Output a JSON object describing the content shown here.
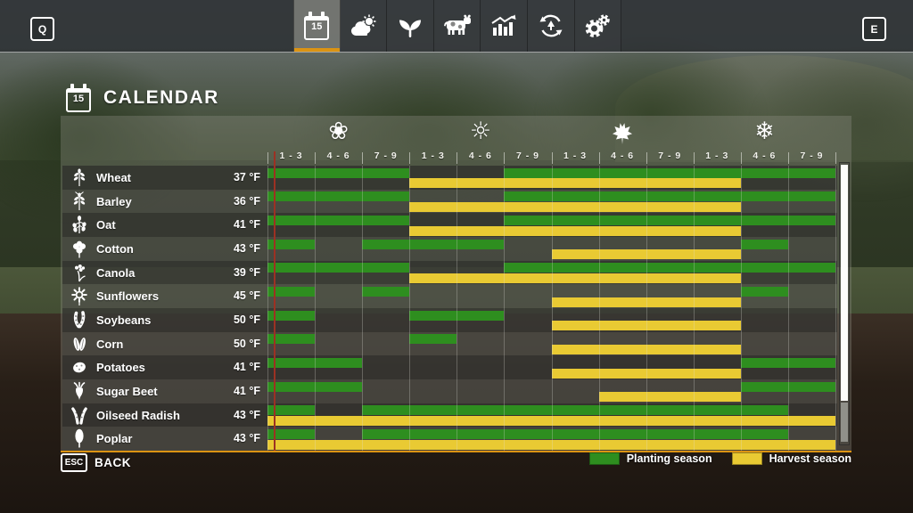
{
  "hud": {
    "left_key": "Q",
    "right_key": "E"
  },
  "topbar": {
    "tabs": [
      {
        "id": "calendar",
        "icon": "calendar-icon",
        "day": "15",
        "active": true
      },
      {
        "id": "weather",
        "icon": "weather-icon",
        "active": false
      },
      {
        "id": "crops",
        "icon": "seedling-icon",
        "active": false
      },
      {
        "id": "animals",
        "icon": "cow-icon",
        "active": false
      },
      {
        "id": "statistics",
        "icon": "stats-icon",
        "active": false
      },
      {
        "id": "rotation",
        "icon": "cycle-icon",
        "active": false
      },
      {
        "id": "settings",
        "icon": "gear-icon",
        "active": false
      }
    ]
  },
  "page": {
    "title": "CALENDAR",
    "icon_day": "15",
    "back_key": "ESC",
    "back_label": "BACK"
  },
  "calendar": {
    "seasons": [
      {
        "name": "spring",
        "icon": "flower-icon",
        "periods": [
          "1 - 3",
          "4 - 6",
          "7 - 9"
        ]
      },
      {
        "name": "summer",
        "icon": "sun-icon",
        "periods": [
          "1 - 3",
          "4 - 6",
          "7 - 9"
        ]
      },
      {
        "name": "autumn",
        "icon": "maple-leaf-icon",
        "periods": [
          "1 - 3",
          "4 - 6",
          "7 - 9"
        ]
      },
      {
        "name": "winter",
        "icon": "snowflake-icon",
        "periods": [
          "1 - 3",
          "4 - 6",
          "7 - 9"
        ]
      }
    ],
    "current_marker_col": 0.14,
    "crops": [
      {
        "name": "Wheat",
        "icon": "wheat-icon",
        "temp": "37 °F",
        "planting": [
          [
            0,
            3
          ],
          [
            5,
            12
          ]
        ],
        "harvest": [
          [
            3,
            10
          ]
        ]
      },
      {
        "name": "Barley",
        "icon": "barley-icon",
        "temp": "36 °F",
        "planting": [
          [
            0,
            3
          ],
          [
            5,
            12
          ]
        ],
        "harvest": [
          [
            3,
            10
          ]
        ]
      },
      {
        "name": "Oat",
        "icon": "oat-icon",
        "temp": "41 °F",
        "planting": [
          [
            0,
            3
          ],
          [
            5,
            12
          ]
        ],
        "harvest": [
          [
            3,
            10
          ]
        ]
      },
      {
        "name": "Cotton",
        "icon": "cotton-icon",
        "temp": "43 °F",
        "planting": [
          [
            0,
            1
          ],
          [
            2,
            5
          ],
          [
            10,
            11
          ]
        ],
        "harvest": [
          [
            6,
            10
          ]
        ]
      },
      {
        "name": "Canola",
        "icon": "canola-icon",
        "temp": "39 °F",
        "planting": [
          [
            0,
            3
          ],
          [
            5,
            12
          ]
        ],
        "harvest": [
          [
            3,
            10
          ]
        ]
      },
      {
        "name": "Sunflowers",
        "icon": "sunflower-icon",
        "temp": "45 °F",
        "planting": [
          [
            0,
            1
          ],
          [
            2,
            3
          ],
          [
            10,
            11
          ]
        ],
        "harvest": [
          [
            6,
            10
          ]
        ]
      },
      {
        "name": "Soybeans",
        "icon": "soybean-icon",
        "temp": "50 °F",
        "planting": [
          [
            0,
            1
          ],
          [
            3,
            5
          ]
        ],
        "harvest": [
          [
            6,
            10
          ]
        ]
      },
      {
        "name": "Corn",
        "icon": "corn-icon",
        "temp": "50 °F",
        "planting": [
          [
            0,
            1
          ],
          [
            3,
            4
          ]
        ],
        "harvest": [
          [
            6,
            10
          ]
        ]
      },
      {
        "name": "Potatoes",
        "icon": "potato-icon",
        "temp": "41 °F",
        "planting": [
          [
            0,
            2
          ],
          [
            10,
            12
          ]
        ],
        "harvest": [
          [
            6,
            10
          ]
        ]
      },
      {
        "name": "Sugar Beet",
        "icon": "sugar-beet-icon",
        "temp": "41 °F",
        "planting": [
          [
            0,
            2
          ],
          [
            10,
            12
          ]
        ],
        "harvest": [
          [
            7,
            10
          ]
        ]
      },
      {
        "name": "Oilseed Radish",
        "icon": "oilseed-radish-icon",
        "temp": "43 °F",
        "planting": [
          [
            0,
            1
          ],
          [
            2,
            11
          ]
        ],
        "harvest": [
          [
            0,
            12
          ]
        ]
      },
      {
        "name": "Poplar",
        "icon": "poplar-icon",
        "temp": "43 °F",
        "planting": [
          [
            0,
            1
          ],
          [
            2,
            11
          ]
        ],
        "harvest": [
          [
            0,
            12
          ]
        ]
      }
    ],
    "legend": [
      {
        "label": "Planting season",
        "color": "#2e8e1f"
      },
      {
        "label": "Harvest season",
        "color": "#e9ca33"
      }
    ]
  },
  "colors": {
    "planting": "#2e8e1f",
    "harvest": "#e9ca33",
    "accent": "#dc9413",
    "current_day_line": "#9c3123"
  }
}
